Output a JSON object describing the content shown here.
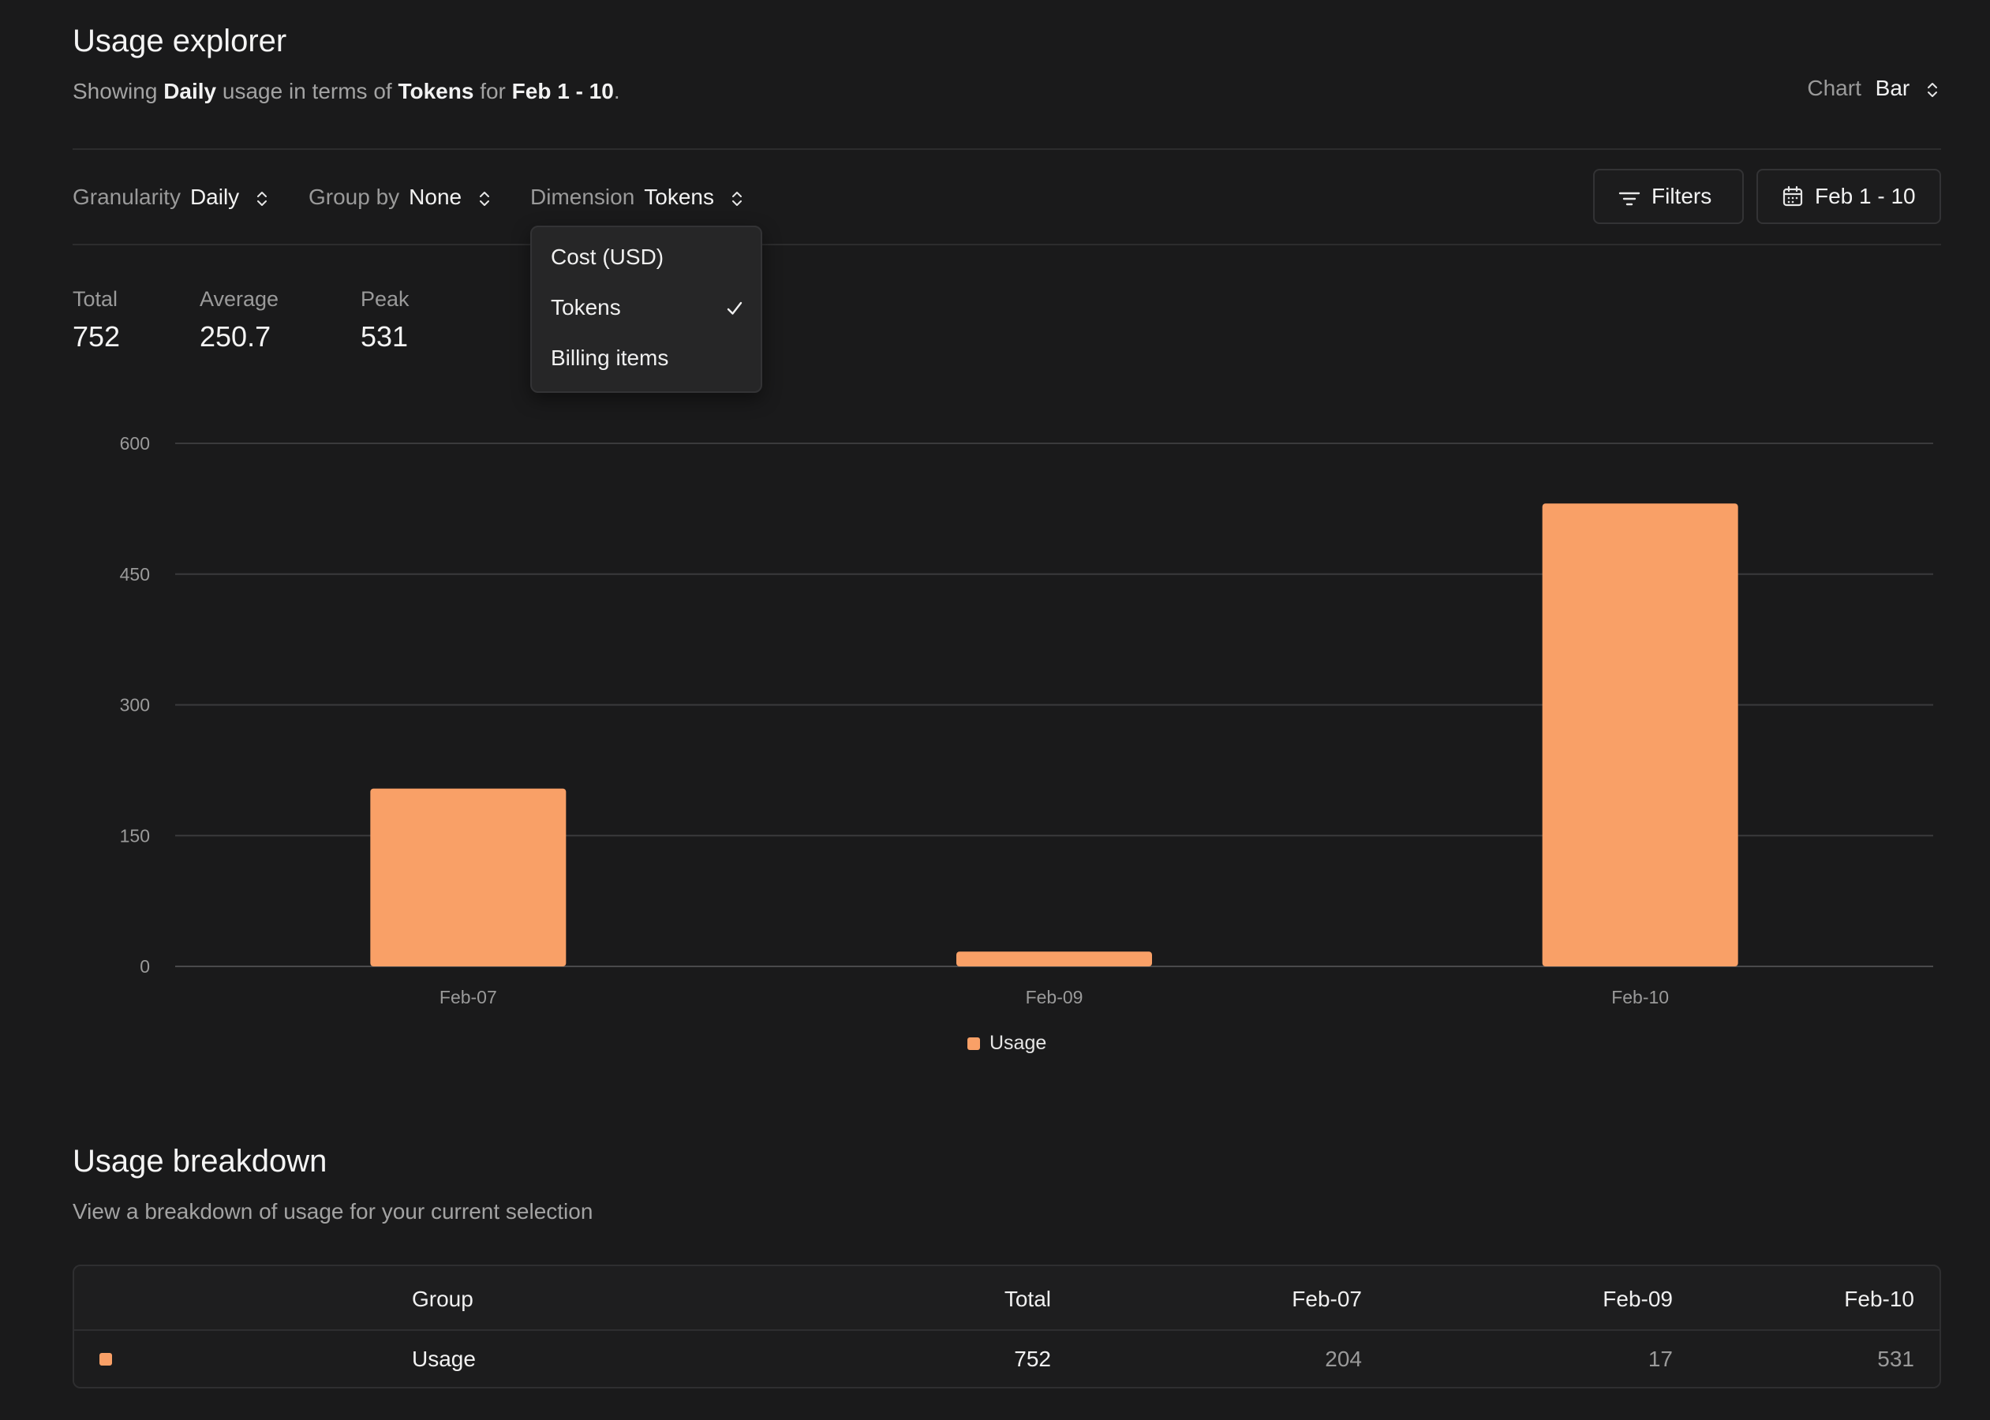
{
  "header": {
    "title": "Usage explorer",
    "subtitle": {
      "prefix": "Showing",
      "granularity": "Daily",
      "mid1": "usage in terms of",
      "dimension": "Tokens",
      "mid2": "for",
      "range": "Feb 1 - 10",
      "suffix": "."
    },
    "chart_type": {
      "label": "Chart",
      "value": "Bar",
      "icon": "chevron-up-down-icon"
    }
  },
  "controls": {
    "granularity": {
      "label": "Granularity",
      "value": "Daily"
    },
    "group_by": {
      "label": "Group by",
      "value": "None"
    },
    "dimension": {
      "label": "Dimension",
      "value": "Tokens"
    },
    "filters_label": "Filters",
    "filters_icon": "filter-icon",
    "date_label": "Feb 1 - 10",
    "date_icon": "calendar-icon"
  },
  "dimension_menu": {
    "options": [
      "Cost (USD)",
      "Tokens",
      "Billing items"
    ],
    "selected": "Tokens",
    "check_icon": "checkmark-icon"
  },
  "stats": {
    "total": {
      "label": "Total",
      "value": "752"
    },
    "average": {
      "label": "Average",
      "value": "250.7"
    },
    "peak": {
      "label": "Peak",
      "value": "531"
    }
  },
  "chart_data": {
    "type": "bar",
    "categories": [
      "Feb-07",
      "Feb-09",
      "Feb-10"
    ],
    "series": [
      {
        "name": "Usage",
        "values": [
          204,
          17,
          531
        ],
        "color": "#f9a067"
      }
    ],
    "yticks": [
      0,
      150,
      300,
      450,
      600
    ],
    "ylim": [
      0,
      600
    ],
    "grid": true,
    "legend": "bottom-center"
  },
  "breakdown": {
    "title": "Usage breakdown",
    "subtitle": "View a breakdown of usage for your current selection",
    "columns": [
      "Group",
      "Total",
      "Feb-07",
      "Feb-09",
      "Feb-10"
    ],
    "rows": [
      {
        "group": "Usage",
        "total": "752",
        "feb07": "204",
        "feb09": "17",
        "feb10": "531",
        "color": "#f9a067"
      }
    ]
  }
}
